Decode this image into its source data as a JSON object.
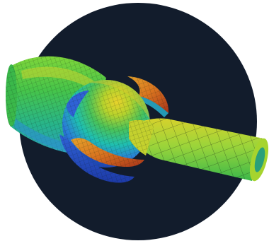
{
  "image": {
    "subject": "fea-mesh-ball-joint-render",
    "background_color": "#ffffff",
    "circle_color": "#121c2c"
  },
  "palette": {
    "dark_blue": "#1d3aa8",
    "blue": "#2f62d6",
    "cyan": "#29b9d8",
    "teal": "#1fc6a8",
    "green": "#3cc04a",
    "yellow_green": "#a6d42e",
    "yellow": "#e6cf2a",
    "orange": "#d8731f",
    "red": "#b5321a"
  }
}
